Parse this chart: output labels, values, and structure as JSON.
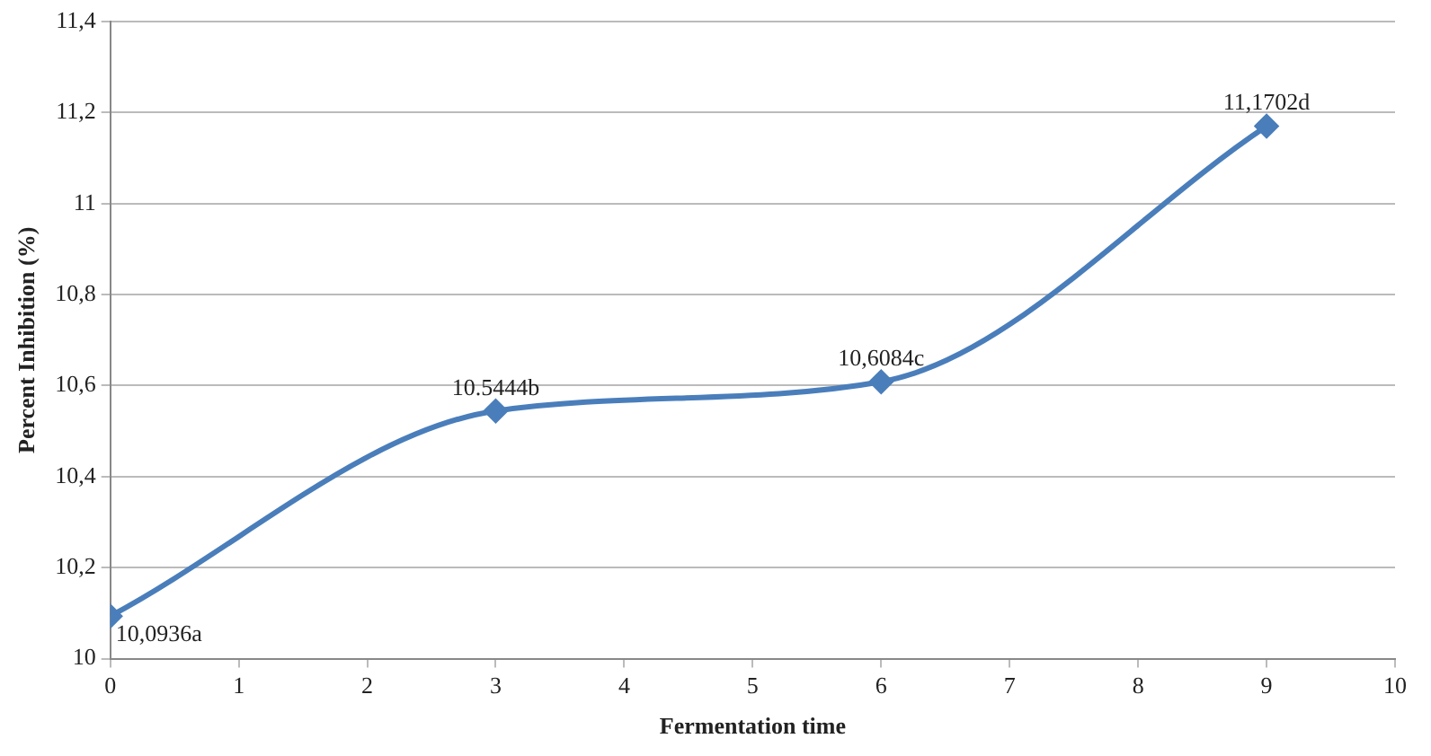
{
  "chart_data": {
    "type": "line",
    "xlabel": "Fermentation time",
    "ylabel": "Percent Inhibition (%)",
    "x": [
      0,
      3,
      6,
      9
    ],
    "series": [
      {
        "color": "#4a7ebb",
        "values": [
          10.0936,
          10.5444,
          10.6084,
          11.1702
        ],
        "value_labels": [
          "10,0936a",
          "10.5444b",
          "10,6084c",
          "11,1702d"
        ]
      }
    ],
    "xlim": [
      0,
      10
    ],
    "xticks": [
      0,
      1,
      2,
      3,
      4,
      5,
      6,
      7,
      8,
      9,
      10
    ],
    "ylim": [
      10,
      11.4
    ],
    "yticks": [
      10,
      {
        "value": 10.2,
        "label": "10,2"
      },
      {
        "value": 10.4,
        "label": "10,4"
      },
      {
        "value": 10.6,
        "label": "10,6"
      },
      {
        "value": 10.8,
        "label": "10,8"
      },
      11,
      {
        "value": 11.2,
        "label": "11,2"
      },
      {
        "value": 11.4,
        "label": "11,4"
      }
    ],
    "grid": "y",
    "legend": false,
    "marker": "diamond",
    "line_style": "solid"
  }
}
